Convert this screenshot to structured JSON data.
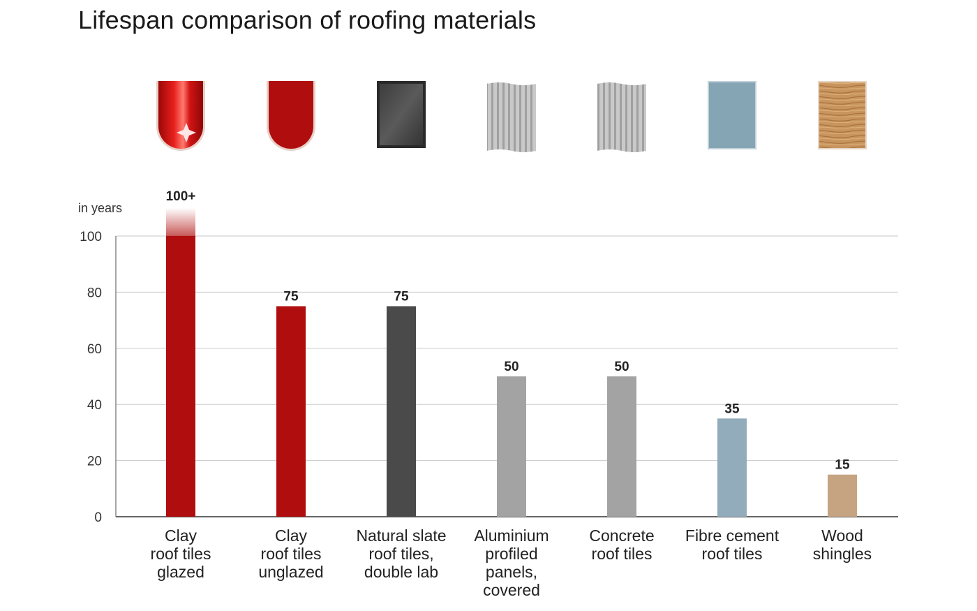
{
  "chart_data": {
    "type": "bar",
    "title": "Lifespan comparison of roofing materials",
    "ylabel": "in years",
    "xlabel": "",
    "ylim": [
      0,
      100
    ],
    "yticks": [
      0,
      20,
      40,
      60,
      80,
      100
    ],
    "grid": true,
    "categories": [
      [
        "Clay",
        "roof tiles",
        "glazed"
      ],
      [
        "Clay",
        "roof tiles",
        "unglazed"
      ],
      [
        "Natural slate",
        "roof tiles,",
        "double lab"
      ],
      [
        "Aluminium",
        "profiled",
        "panels,",
        "covered"
      ],
      [
        "Concrete",
        "roof tiles"
      ],
      [
        "Fibre cement",
        "roof tiles"
      ],
      [
        "Wood",
        "shingles"
      ]
    ],
    "values": [
      100,
      75,
      75,
      50,
      50,
      35,
      15
    ],
    "value_labels": [
      "100+",
      "75",
      "75",
      "50",
      "50",
      "35",
      "15"
    ],
    "colors": [
      "#b00e0e",
      "#b00e0e",
      "#4a4a4a",
      "#a3a3a3",
      "#a3a3a3",
      "#93acbb",
      "#c6a381"
    ],
    "icons": [
      "clay-tile-glazed-icon",
      "clay-tile-unglazed-icon",
      "slate-tile-icon",
      "aluminium-panel-icon",
      "concrete-tile-icon",
      "fibre-cement-tile-icon",
      "wood-shingle-icon"
    ]
  }
}
